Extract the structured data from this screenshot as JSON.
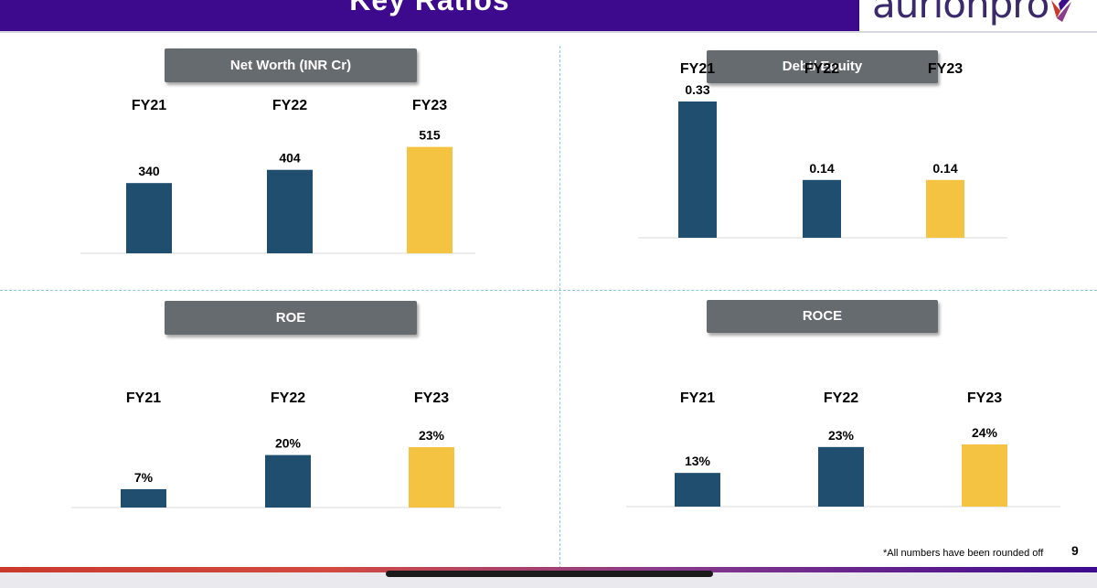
{
  "header": {
    "title": "Key Ratios",
    "logo_text": "aurionpro"
  },
  "footnote": "*All numbers have been rounded off",
  "page_number": "9",
  "colors": {
    "header": "#3d0a8e",
    "navy": "#1f4e6e",
    "gold": "#f4c341",
    "title_box": "#666b70"
  },
  "chart_data": [
    {
      "type": "bar",
      "title": "Net Worth (INR Cr)",
      "categories": [
        "FY21",
        "FY22",
        "FY23"
      ],
      "values": [
        340,
        404,
        515
      ],
      "labels": [
        "340",
        "404",
        "515"
      ],
      "colors": [
        "#1f4e6e",
        "#1f4e6e",
        "#f4c341"
      ],
      "ylim": [
        0,
        540
      ]
    },
    {
      "type": "bar",
      "title": "Debt/ Equity",
      "categories": [
        "FY21",
        "FY22",
        "FY23"
      ],
      "values": [
        0.33,
        0.14,
        0.14
      ],
      "labels": [
        "0.33",
        "0.14",
        "0.14"
      ],
      "colors": [
        "#1f4e6e",
        "#1f4e6e",
        "#f4c341"
      ],
      "ylim": [
        0,
        0.33
      ]
    },
    {
      "type": "bar",
      "title": "ROE",
      "categories": [
        "FY21",
        "FY22",
        "FY23"
      ],
      "values": [
        7,
        20,
        23
      ],
      "labels": [
        "7%",
        "20%",
        "23%"
      ],
      "colors": [
        "#1f4e6e",
        "#1f4e6e",
        "#f4c341"
      ],
      "ylim": [
        0,
        23
      ]
    },
    {
      "type": "bar",
      "title": "ROCE",
      "categories": [
        "FY21",
        "FY22",
        "FY23"
      ],
      "values": [
        13,
        23,
        24
      ],
      "labels": [
        "13%",
        "23%",
        "24%"
      ],
      "colors": [
        "#1f4e6e",
        "#1f4e6e",
        "#f4c341"
      ],
      "ylim": [
        0,
        24
      ]
    }
  ]
}
